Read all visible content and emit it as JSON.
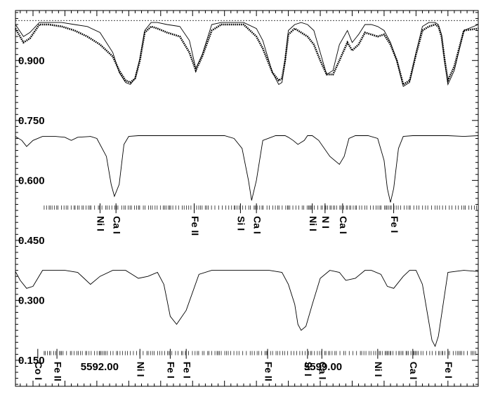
{
  "chart_data": {
    "type": "line",
    "title": "",
    "xlabel": "",
    "ylabel": "",
    "xlim": [
      5589.45,
      5603.95
    ],
    "ylim": [
      0.085,
      1.025
    ],
    "y_ticks": [
      0.15,
      0.3,
      0.45,
      0.6,
      0.75,
      0.9
    ],
    "y_tick_labels": [
      "0.150",
      "0.300",
      "0.450",
      "0.600",
      "0.750",
      "0.900"
    ],
    "x_tick_labels": [
      {
        "value": 5592.0,
        "label": "5592.00"
      },
      {
        "value": 5599.0,
        "label": "5599.00"
      }
    ],
    "reference_line": {
      "y": 1.0,
      "style": "dotted"
    },
    "series": [
      {
        "style": "dotted",
        "x": [
          5589.45,
          5589.7,
          5589.9,
          5590.2,
          5590.5,
          5590.9,
          5591.3,
          5591.7,
          5592.1,
          5592.5,
          5592.7,
          5592.9,
          5593.05,
          5593.2,
          5593.35,
          5593.5,
          5593.7,
          5593.9,
          5594.2,
          5594.6,
          5594.9,
          5595.1,
          5595.3,
          5595.6,
          5595.9,
          5596.2,
          5596.6,
          5597.0,
          5597.2,
          5597.5,
          5597.7,
          5597.8,
          5597.9,
          5598.0,
          5598.2,
          5598.4,
          5598.6,
          5598.8,
          5599.0,
          5599.2,
          5599.4,
          5599.6,
          5599.85,
          5600.0,
          5600.2,
          5600.4,
          5600.6,
          5600.8,
          5601.0,
          5601.2,
          5601.4,
          5601.6,
          5601.8,
          5602.0,
          5602.2,
          5602.4,
          5602.6,
          5602.7,
          5602.8,
          5602.9,
          5603.0,
          5603.2,
          5603.5,
          5603.95
        ],
        "y": [
          0.98,
          0.945,
          0.955,
          0.99,
          0.99,
          0.985,
          0.975,
          0.96,
          0.94,
          0.91,
          0.875,
          0.85,
          0.845,
          0.855,
          0.9,
          0.97,
          0.985,
          0.98,
          0.97,
          0.96,
          0.92,
          0.875,
          0.91,
          0.975,
          0.99,
          0.99,
          0.99,
          0.96,
          0.93,
          0.87,
          0.85,
          0.855,
          0.9,
          0.965,
          0.98,
          0.97,
          0.96,
          0.94,
          0.9,
          0.865,
          0.865,
          0.9,
          0.945,
          0.925,
          0.94,
          0.97,
          0.965,
          0.96,
          0.965,
          0.94,
          0.9,
          0.84,
          0.85,
          0.915,
          0.975,
          0.985,
          0.99,
          0.985,
          0.96,
          0.9,
          0.85,
          0.885,
          0.975,
          0.98
        ]
      },
      {
        "style": "thin",
        "x": [
          5589.45,
          5589.7,
          5589.9,
          5590.2,
          5590.5,
          5590.9,
          5591.3,
          5591.7,
          5592.1,
          5592.5,
          5592.7,
          5592.9,
          5593.05,
          5593.2,
          5593.35,
          5593.5,
          5593.7,
          5593.9,
          5594.2,
          5594.6,
          5594.9,
          5595.1,
          5595.3,
          5595.6,
          5595.9,
          5596.2,
          5596.6,
          5597.0,
          5597.2,
          5597.5,
          5597.7,
          5597.8,
          5597.9,
          5598.0,
          5598.2,
          5598.4,
          5598.6,
          5598.8,
          5599.0,
          5599.2,
          5599.4,
          5599.6,
          5599.85,
          5600.0,
          5600.2,
          5600.4,
          5600.6,
          5600.8,
          5601.0,
          5601.2,
          5601.4,
          5601.6,
          5601.8,
          5602.0,
          5602.2,
          5602.4,
          5602.6,
          5602.7,
          5602.8,
          5602.9,
          5603.0,
          5603.2,
          5603.5,
          5603.95
        ],
        "y": [
          0.99,
          0.96,
          0.97,
          0.995,
          0.995,
          0.995,
          0.99,
          0.985,
          0.97,
          0.92,
          0.87,
          0.845,
          0.84,
          0.855,
          0.905,
          0.975,
          0.995,
          0.995,
          0.99,
          0.985,
          0.95,
          0.88,
          0.915,
          0.99,
          0.995,
          0.995,
          0.995,
          0.98,
          0.95,
          0.87,
          0.84,
          0.845,
          0.9,
          0.975,
          0.99,
          0.995,
          0.99,
          0.975,
          0.92,
          0.865,
          0.875,
          0.94,
          0.975,
          0.945,
          0.965,
          0.99,
          0.99,
          0.985,
          0.975,
          0.945,
          0.9,
          0.835,
          0.845,
          0.92,
          0.985,
          0.995,
          0.995,
          0.99,
          0.965,
          0.895,
          0.84,
          0.875,
          0.975,
          0.99
        ]
      },
      {
        "style": "thin",
        "x": [
          5589.45,
          5589.65,
          5589.8,
          5590.0,
          5590.3,
          5590.7,
          5591.0,
          5591.2,
          5591.4,
          5591.8,
          5592.0,
          5592.3,
          5592.45,
          5592.55,
          5592.7,
          5592.85,
          5593.0,
          5593.3,
          5593.8,
          5594.2,
          5594.8,
          5595.2,
          5595.6,
          5596.0,
          5596.3,
          5596.55,
          5596.75,
          5596.85,
          5597.0,
          5597.2,
          5597.6,
          5597.9,
          5598.0,
          5598.15,
          5598.3,
          5598.5,
          5598.6,
          5598.75,
          5598.95,
          5599.3,
          5599.6,
          5599.75,
          5599.9,
          5600.1,
          5600.2,
          5600.5,
          5600.8,
          5601.0,
          5601.1,
          5601.2,
          5601.3,
          5601.45,
          5601.6,
          5601.9,
          5602.4,
          5603.0,
          5603.5,
          5603.95
        ],
        "y": [
          0.71,
          0.7,
          0.685,
          0.7,
          0.71,
          0.71,
          0.708,
          0.7,
          0.708,
          0.71,
          0.705,
          0.66,
          0.59,
          0.56,
          0.59,
          0.69,
          0.71,
          0.712,
          0.712,
          0.712,
          0.712,
          0.712,
          0.712,
          0.712,
          0.705,
          0.68,
          0.6,
          0.55,
          0.6,
          0.7,
          0.712,
          0.712,
          0.708,
          0.7,
          0.69,
          0.7,
          0.712,
          0.712,
          0.7,
          0.66,
          0.64,
          0.66,
          0.705,
          0.712,
          0.712,
          0.712,
          0.705,
          0.65,
          0.58,
          0.545,
          0.58,
          0.68,
          0.71,
          0.712,
          0.712,
          0.712,
          0.71,
          0.712
        ]
      },
      {
        "style": "thin",
        "x": [
          5589.45,
          5589.6,
          5589.8,
          5590.0,
          5590.3,
          5591.0,
          5591.4,
          5591.6,
          5591.8,
          5592.1,
          5592.5,
          5592.9,
          5593.1,
          5593.3,
          5593.6,
          5593.9,
          5594.1,
          5594.2,
          5594.3,
          5594.5,
          5594.8,
          5595.2,
          5595.6,
          5596.1,
          5596.6,
          5597.0,
          5597.4,
          5597.8,
          5598.0,
          5598.2,
          5598.3,
          5598.4,
          5598.55,
          5598.75,
          5599.0,
          5599.3,
          5599.6,
          5599.8,
          5600.1,
          5600.4,
          5600.6,
          5600.9,
          5601.1,
          5601.3,
          5601.6,
          5601.8,
          5602.0,
          5602.2,
          5602.35,
          5602.5,
          5602.6,
          5602.7,
          5603.0,
          5603.5,
          5603.95
        ],
        "y": [
          0.372,
          0.35,
          0.33,
          0.335,
          0.375,
          0.375,
          0.37,
          0.355,
          0.34,
          0.36,
          0.375,
          0.375,
          0.365,
          0.355,
          0.36,
          0.37,
          0.34,
          0.3,
          0.26,
          0.24,
          0.275,
          0.365,
          0.375,
          0.375,
          0.375,
          0.375,
          0.375,
          0.37,
          0.34,
          0.29,
          0.24,
          0.225,
          0.235,
          0.29,
          0.355,
          0.375,
          0.37,
          0.35,
          0.355,
          0.375,
          0.375,
          0.365,
          0.335,
          0.33,
          0.36,
          0.375,
          0.375,
          0.34,
          0.27,
          0.2,
          0.185,
          0.21,
          0.37,
          0.375,
          0.372
        ]
      }
    ],
    "line_marker_rows": [
      {
        "y": 0.532,
        "labels": [
          {
            "x": 5592.1,
            "text": "Ni I"
          },
          {
            "x": 5592.6,
            "text": "Ca I"
          },
          {
            "x": 5595.05,
            "text": "Fe II"
          },
          {
            "x": 5596.5,
            "text": "Si I"
          },
          {
            "x": 5597.0,
            "text": "Ca I"
          },
          {
            "x": 5598.75,
            "text": "Ni I"
          },
          {
            "x": 5599.15,
            "text": "N I"
          },
          {
            "x": 5599.7,
            "text": "Ca I"
          },
          {
            "x": 5601.3,
            "text": "Fe I"
          }
        ]
      },
      {
        "y": 0.168,
        "labels": [
          {
            "x": 5590.15,
            "text": "Co I"
          },
          {
            "x": 5590.75,
            "text": "Fe II"
          },
          {
            "x": 5593.35,
            "text": "Ni I"
          },
          {
            "x": 5594.3,
            "text": "Fe I"
          },
          {
            "x": 5594.8,
            "text": "Fe I"
          },
          {
            "x": 5597.35,
            "text": "Fe II"
          },
          {
            "x": 5598.6,
            "text": "Si I"
          },
          {
            "x": 5599.05,
            "text": "Ca I"
          },
          {
            "x": 5600.8,
            "text": "Ni I"
          },
          {
            "x": 5601.9,
            "text": "Ca I"
          },
          {
            "x": 5603.0,
            "text": "Fe I"
          }
        ]
      }
    ],
    "grid": false,
    "legend": "none"
  }
}
